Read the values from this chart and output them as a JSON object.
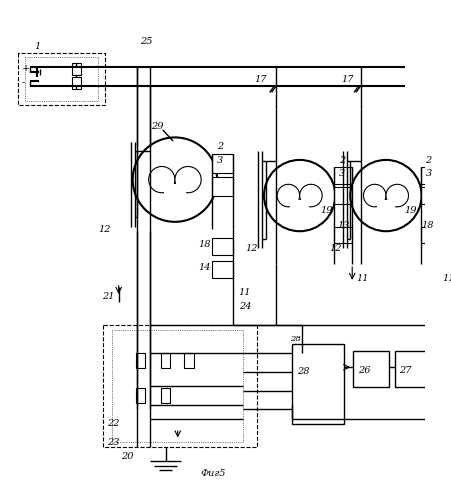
{
  "caption": "Фиг5",
  "bg_color": "#ffffff",
  "fig_width": 4.52,
  "fig_height": 4.99
}
